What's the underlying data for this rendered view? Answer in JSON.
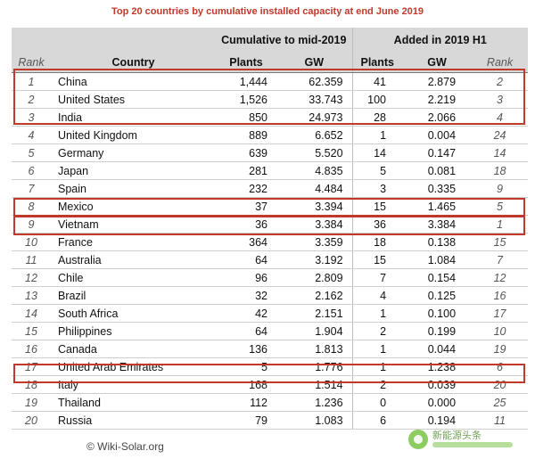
{
  "title": "Top 20 countries by cumulative installed capacity at end June 2019",
  "header": {
    "group1": "Cumulative to mid-2019",
    "group2": "Added in 2019 H1",
    "rank": "Rank",
    "country": "Country",
    "plants": "Plants",
    "gw": "GW",
    "plants2": "Plants",
    "gw2": "GW",
    "rank2": "Rank"
  },
  "rows": [
    {
      "rank": "1",
      "country": "China",
      "plants": "1,444",
      "gw": "62.359",
      "plants2": "41",
      "gw2": "2.879",
      "rank2": "2"
    },
    {
      "rank": "2",
      "country": "United States",
      "plants": "1,526",
      "gw": "33.743",
      "plants2": "100",
      "gw2": "2.219",
      "rank2": "3"
    },
    {
      "rank": "3",
      "country": "India",
      "plants": "850",
      "gw": "24.973",
      "plants2": "28",
      "gw2": "2.066",
      "rank2": "4"
    },
    {
      "rank": "4",
      "country": "United Kingdom",
      "plants": "889",
      "gw": "6.652",
      "plants2": "1",
      "gw2": "0.004",
      "rank2": "24"
    },
    {
      "rank": "5",
      "country": "Germany",
      "plants": "639",
      "gw": "5.520",
      "plants2": "14",
      "gw2": "0.147",
      "rank2": "14"
    },
    {
      "rank": "6",
      "country": "Japan",
      "plants": "281",
      "gw": "4.835",
      "plants2": "5",
      "gw2": "0.081",
      "rank2": "18"
    },
    {
      "rank": "7",
      "country": "Spain",
      "plants": "232",
      "gw": "4.484",
      "plants2": "3",
      "gw2": "0.335",
      "rank2": "9"
    },
    {
      "rank": "8",
      "country": "Mexico",
      "plants": "37",
      "gw": "3.394",
      "plants2": "15",
      "gw2": "1.465",
      "rank2": "5"
    },
    {
      "rank": "9",
      "country": "Vietnam",
      "plants": "36",
      "gw": "3.384",
      "plants2": "36",
      "gw2": "3.384",
      "rank2": "1"
    },
    {
      "rank": "10",
      "country": "France",
      "plants": "364",
      "gw": "3.359",
      "plants2": "18",
      "gw2": "0.138",
      "rank2": "15"
    },
    {
      "rank": "11",
      "country": "Australia",
      "plants": "64",
      "gw": "3.192",
      "plants2": "15",
      "gw2": "1.084",
      "rank2": "7"
    },
    {
      "rank": "12",
      "country": "Chile",
      "plants": "96",
      "gw": "2.809",
      "plants2": "7",
      "gw2": "0.154",
      "rank2": "12"
    },
    {
      "rank": "13",
      "country": "Brazil",
      "plants": "32",
      "gw": "2.162",
      "plants2": "4",
      "gw2": "0.125",
      "rank2": "16"
    },
    {
      "rank": "14",
      "country": "South Africa",
      "plants": "42",
      "gw": "2.151",
      "plants2": "1",
      "gw2": "0.100",
      "rank2": "17"
    },
    {
      "rank": "15",
      "country": "Philippines",
      "plants": "64",
      "gw": "1.904",
      "plants2": "2",
      "gw2": "0.199",
      "rank2": "10"
    },
    {
      "rank": "16",
      "country": "Canada",
      "plants": "136",
      "gw": "1.813",
      "plants2": "1",
      "gw2": "0.044",
      "rank2": "19"
    },
    {
      "rank": "17",
      "country": "United Arab Emirates",
      "plants": "5",
      "gw": "1.776",
      "plants2": "1",
      "gw2": "1.238",
      "rank2": "6"
    },
    {
      "rank": "18",
      "country": "Italy",
      "plants": "168",
      "gw": "1.514",
      "plants2": "2",
      "gw2": "0.039",
      "rank2": "20"
    },
    {
      "rank": "19",
      "country": "Thailand",
      "plants": "112",
      "gw": "1.236",
      "plants2": "0",
      "gw2": "0.000",
      "rank2": "25"
    },
    {
      "rank": "20",
      "country": "Russia",
      "plants": "79",
      "gw": "1.083",
      "plants2": "6",
      "gw2": "0.194",
      "rank2": "11"
    }
  ],
  "footer": "© Wiki-Solar.org",
  "watermark": "新能源头条",
  "colors": {
    "highlight": "#c0392b",
    "title": "#c0392b",
    "header_bg": "#d8d8d8"
  }
}
